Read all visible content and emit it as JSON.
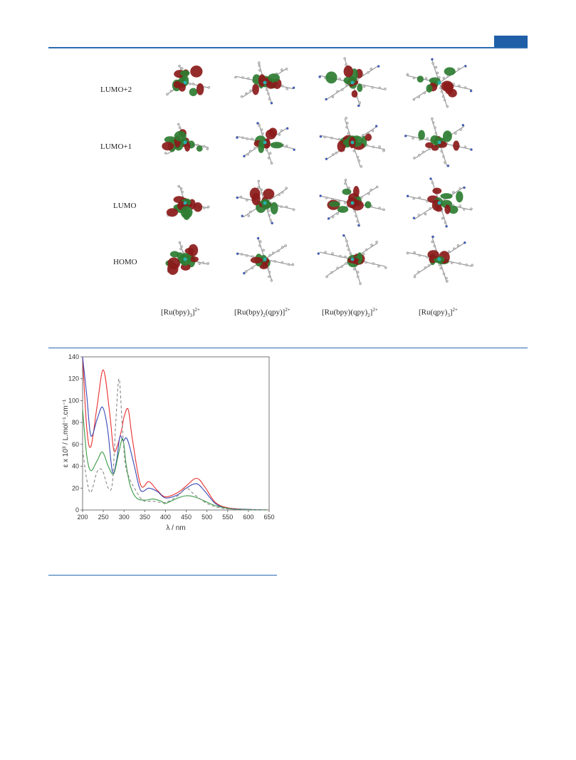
{
  "orbital_labels": [
    "LUMO+2",
    "LUMO+1",
    "LUMO",
    "HOMO"
  ],
  "complexes": [
    {
      "pre": "[Ru(bpy)",
      "sub": "3",
      "mid": "]",
      "sup": "2+",
      "post": ""
    },
    {
      "pre": "[Ru(bpy)",
      "sub": "2",
      "mid": "(qpy)]",
      "sup": "2+",
      "post": ""
    },
    {
      "pre": "[Ru(bpy)(qpy)",
      "sub": "2",
      "mid": "]",
      "sup": "2+",
      "post": ""
    },
    {
      "pre": "[Ru(qpy)",
      "sub": "3",
      "mid": "]",
      "sup": "2+",
      "post": ""
    }
  ],
  "colors": {
    "rule": "#2a6db0",
    "tab": "#1f5fa8",
    "red_lobe": "#8b1a1a",
    "green_lobe": "#2e7d32"
  },
  "chart_data": {
    "type": "line",
    "xlabel": "λ / nm",
    "ylabel": "ε x 10³ / L.mol⁻¹.cm⁻¹",
    "xlim": [
      200,
      650
    ],
    "ylim": [
      0,
      140
    ],
    "xticks": [
      200,
      250,
      300,
      350,
      400,
      450,
      500,
      550,
      600,
      650
    ],
    "yticks": [
      0,
      20,
      40,
      60,
      80,
      100,
      120,
      140
    ],
    "series": [
      {
        "color": "#e8302f",
        "dash": "",
        "x": [
          200,
          210,
          220,
          235,
          250,
          265,
          275,
          285,
          295,
          300,
          310,
          320,
          340,
          360,
          380,
          400,
          430,
          450,
          475,
          495,
          520,
          550,
          600,
          650
        ],
        "y": [
          140,
          75,
          58,
          95,
          128,
          90,
          55,
          60,
          75,
          85,
          92,
          65,
          23,
          26,
          18,
          12,
          16,
          22,
          29,
          21,
          7,
          2,
          0.5,
          0
        ]
      },
      {
        "color": "#3848b5",
        "dash": "",
        "x": [
          200,
          210,
          220,
          235,
          248,
          260,
          272,
          282,
          290,
          298,
          305,
          312,
          325,
          340,
          360,
          380,
          400,
          430,
          450,
          475,
          495,
          520,
          550,
          600,
          650
        ],
        "y": [
          140,
          105,
          68,
          83,
          94,
          75,
          35,
          45,
          67,
          63,
          66,
          60,
          40,
          18,
          20,
          17,
          11,
          14,
          20,
          24,
          17,
          6,
          1.5,
          0.5,
          0
        ]
      },
      {
        "color": "#3a9a45",
        "dash": "",
        "x": [
          200,
          210,
          220,
          235,
          248,
          262,
          275,
          287,
          297,
          305,
          315,
          330,
          350,
          370,
          390,
          400,
          430,
          450,
          470,
          490,
          520,
          560,
          600,
          650
        ],
        "y": [
          92,
          50,
          36,
          45,
          53,
          40,
          33,
          52,
          65,
          42,
          22,
          11,
          9,
          10,
          8,
          6,
          11,
          13,
          12,
          9,
          4,
          1,
          0.3,
          0
        ]
      },
      {
        "color": "#888888",
        "dash": "4,3",
        "x": [
          200,
          210,
          220,
          235,
          248,
          262,
          272,
          280,
          288,
          296,
          303,
          312,
          325,
          345,
          370,
          400,
          430,
          450,
          470,
          500,
          530,
          560,
          600,
          650
        ],
        "y": [
          55,
          28,
          16,
          35,
          36,
          20,
          25,
          80,
          120,
          75,
          42,
          30,
          20,
          9,
          8,
          7,
          13,
          20,
          14,
          6,
          2,
          0.8,
          0.2,
          0
        ]
      }
    ]
  }
}
